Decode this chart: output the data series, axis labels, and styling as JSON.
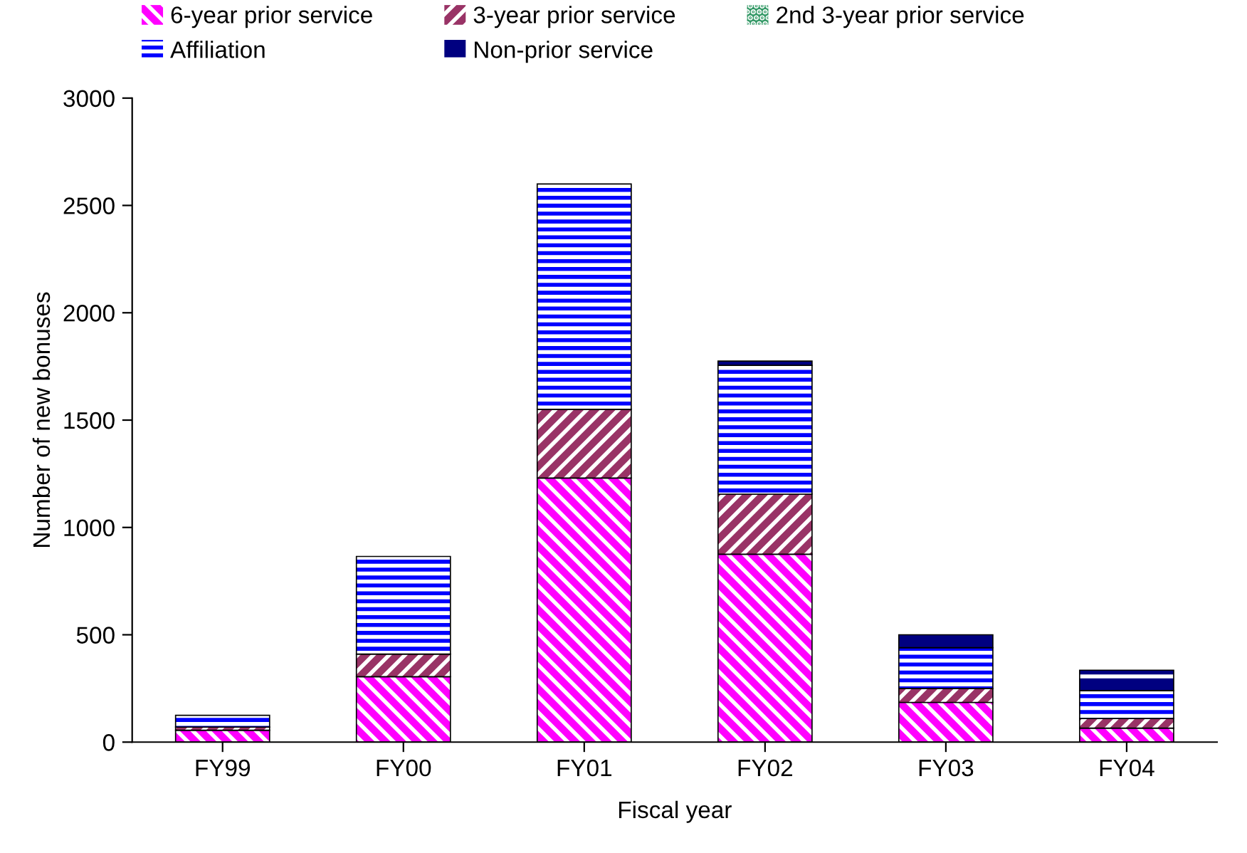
{
  "chart_data": {
    "type": "bar",
    "stacked": true,
    "xlabel": "Fiscal year",
    "ylabel": "Number of new bonuses",
    "categories": [
      "FY99",
      "FY00",
      "FY01",
      "FY02",
      "FY03",
      "FY04"
    ],
    "series": [
      {
        "name": "6-year prior service",
        "color": "#ff00ff",
        "values": [
          55,
          305,
          1230,
          875,
          185,
          65
        ]
      },
      {
        "name": "3-year prior service",
        "color": "#993366",
        "values": [
          15,
          105,
          320,
          280,
          65,
          45
        ]
      },
      {
        "name": "2nd 3-year prior service",
        "color": "#339966",
        "values": [
          null,
          null,
          null,
          null,
          null,
          null
        ]
      },
      {
        "name": "Affiliation",
        "color": "#0000ff",
        "values": [
          55,
          455,
          1050,
          600,
          190,
          130
        ]
      },
      {
        "name": "Non-prior service",
        "color": "#000080",
        "values": [
          null,
          null,
          null,
          20,
          60,
          95
        ]
      }
    ],
    "ylim": [
      0,
      3000
    ],
    "yticks": [
      0,
      500,
      1000,
      1500,
      2000,
      2500,
      3000
    ],
    "grid": false,
    "legend": "top"
  }
}
